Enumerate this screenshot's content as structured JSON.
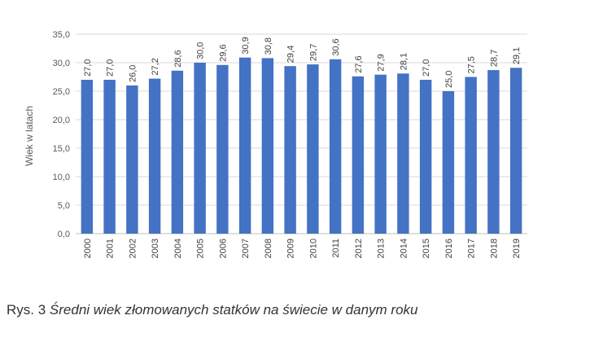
{
  "chart_data": {
    "type": "bar",
    "ylabel": "Wiek w latach",
    "xlabel": "",
    "title": "",
    "ylim": [
      0,
      35
    ],
    "ytick_values": [
      0,
      5,
      10,
      15,
      20,
      25,
      30,
      35
    ],
    "ytick_labels": [
      "0,0",
      "5,0",
      "10,0",
      "15,0",
      "20,0",
      "25,0",
      "30,0",
      "35,0"
    ],
    "categories": [
      "2000",
      "2001",
      "2002",
      "2003",
      "2004",
      "2005",
      "2006",
      "2007",
      "2008",
      "2009",
      "2010",
      "2011",
      "2012",
      "2013",
      "2014",
      "2015",
      "2016",
      "2017",
      "2018",
      "2019"
    ],
    "values": [
      27.0,
      27.0,
      26.0,
      27.2,
      28.6,
      30.0,
      29.6,
      30.9,
      30.8,
      29.4,
      29.7,
      30.6,
      27.6,
      27.9,
      28.1,
      27.0,
      25.0,
      27.5,
      28.7,
      29.1
    ],
    "data_labels": [
      "27,0",
      "27,0",
      "26,0",
      "27,2",
      "28,6",
      "30,0",
      "29,6",
      "30,9",
      "30,8",
      "29,4",
      "29,7",
      "30,6",
      "27,6",
      "27,9",
      "28,1",
      "27,0",
      "25,0",
      "27,5",
      "28,7",
      "29,1"
    ],
    "grid": true,
    "bar_color": "#4472c4",
    "grid_color": "#d9d9d9"
  },
  "caption": {
    "prefix": "Rys. 3 ",
    "text": "Średni wiek złomowanych statków na świecie w danym roku"
  }
}
